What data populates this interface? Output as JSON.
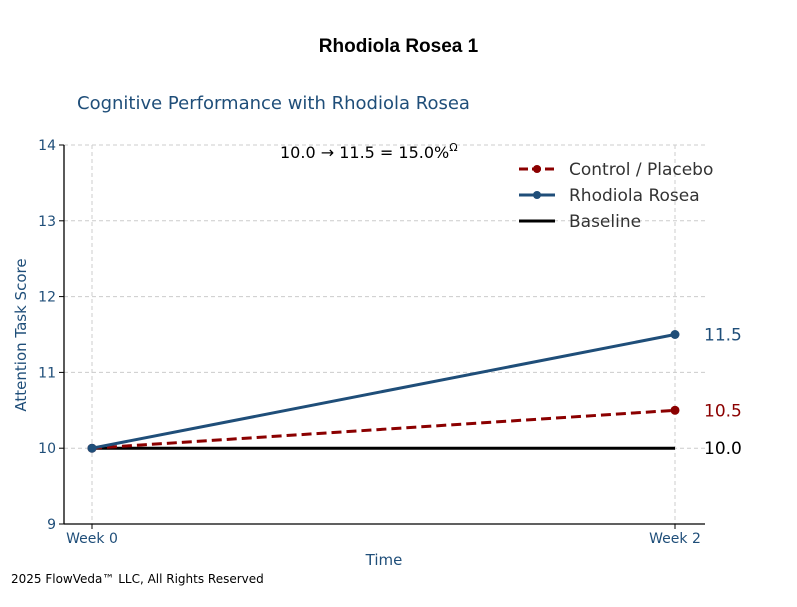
{
  "page": {
    "title": "Rhodiola Rosea 1",
    "copyright": "2025 FlowVeda™ LLC, All Rights Reserved"
  },
  "chart_data": {
    "type": "line",
    "title": "Cognitive Performance with Rhodiola Rosea",
    "xlabel": "Time",
    "ylabel": "Attention Task Score",
    "categories": [
      "Week 0",
      "Week 2"
    ],
    "ylim": [
      9,
      14
    ],
    "yticks": [
      9,
      10,
      11,
      12,
      13,
      14
    ],
    "grid": true,
    "legend_position": "top-right",
    "annotation": "10.0 → 11.5 = 15.0%",
    "annotation_superscript": "Ω",
    "series": [
      {
        "name": "Control / Placebo",
        "values": [
          10.0,
          10.5
        ],
        "color": "#8B0000",
        "style": "dashed",
        "markers": true,
        "end_label": "10.5"
      },
      {
        "name": "Rhodiola Rosea",
        "values": [
          10.0,
          11.5
        ],
        "color": "#1F4E79",
        "style": "solid",
        "markers": true,
        "end_label": "11.5"
      },
      {
        "name": "Baseline",
        "values": [
          10.0,
          10.0
        ],
        "color": "#000000",
        "style": "solid",
        "markers": false,
        "end_label": "10.0"
      }
    ]
  }
}
